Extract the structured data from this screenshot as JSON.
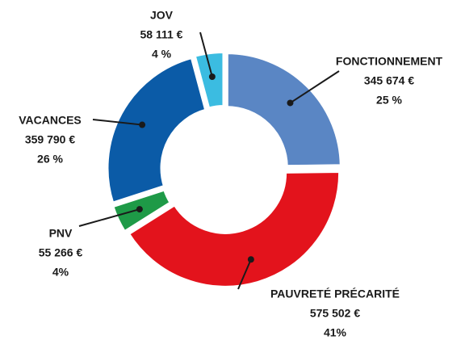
{
  "chart_data": {
    "type": "donut",
    "categories": [
      "FONCTIONNEMENT",
      "PAUVRETÉ PRÉCARITÉ",
      "PNV",
      "VACANCES",
      "JOV"
    ],
    "values": [
      345674,
      575502,
      55266,
      359790,
      58111
    ],
    "value_labels": [
      "345 674 €",
      "575 502 €",
      "55 266 €",
      "359 790 €",
      "58 111 €"
    ],
    "shares": [
      25,
      41,
      4,
      26,
      4
    ],
    "share_labels": [
      "25 %",
      "41%",
      "4%",
      "26 %",
      "4 %"
    ],
    "colors": [
      "#5a86c4",
      "#e3131c",
      "#1e9a47",
      "#0b5ba7",
      "#3bbce1"
    ]
  }
}
